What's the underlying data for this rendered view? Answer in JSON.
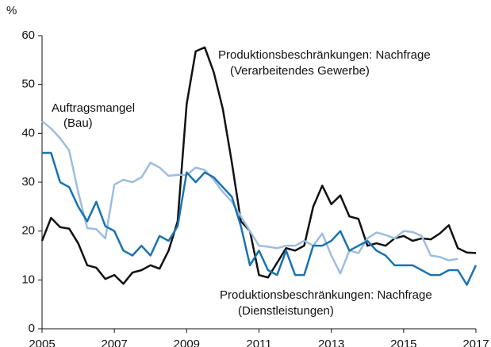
{
  "chart_data": {
    "type": "line",
    "y_label": "%",
    "x": [
      2005,
      2005.25,
      2005.5,
      2005.75,
      2006,
      2006.25,
      2006.5,
      2006.75,
      2007,
      2007.25,
      2007.5,
      2007.75,
      2008,
      2008.25,
      2008.5,
      2008.75,
      2009,
      2009.25,
      2009.5,
      2009.75,
      2010,
      2010.25,
      2010.5,
      2010.75,
      2011,
      2011.25,
      2011.5,
      2011.75,
      2012,
      2012.25,
      2012.5,
      2012.75,
      2013,
      2013.25,
      2013.5,
      2013.75,
      2014,
      2014.25,
      2014.5,
      2014.75,
      2015,
      2015.25,
      2015.5,
      2015.75,
      2016,
      2016.25,
      2016.5,
      2016.75,
      2017
    ],
    "series": [
      {
        "label": [
          "Produktionsbeschränkungen: Nachfrage",
          "(Verarbeitendes Gewerbe)"
        ],
        "color": "#111111",
        "values": [
          18,
          22.7,
          20.8,
          20.5,
          17.5,
          13,
          12.5,
          10.2,
          11,
          9.2,
          11.5,
          12,
          13,
          12.3,
          16,
          22,
          46,
          56.8,
          57.6,
          52.5,
          45,
          34,
          22,
          20,
          11,
          10.5,
          13.5,
          16.5,
          16,
          17,
          25,
          29.3,
          25.5,
          27.3,
          23,
          22.5,
          17,
          17.5,
          17,
          18.5,
          19,
          18,
          18.5,
          18.3,
          19.5,
          21.2,
          16.5,
          15.6,
          15.5
        ]
      },
      {
        "label": [
          "Auftragsmangel",
          "(Bau)"
        ],
        "color": "#9dbde0",
        "values": [
          42.5,
          41,
          39,
          36.5,
          28,
          20.6,
          20.4,
          18.5,
          29.5,
          30.5,
          30,
          31,
          34,
          33,
          31.3,
          31.5,
          31.5,
          33,
          32.5,
          30.5,
          28,
          26,
          23,
          20,
          17,
          16.8,
          16.5,
          17,
          17,
          18,
          17,
          19.5,
          15,
          11.3,
          16,
          15.5,
          18.5,
          19.7,
          19.2,
          18.5,
          20,
          19.8,
          19,
          15,
          14.7,
          14,
          14.3,
          null,
          null
        ]
      },
      {
        "label": [
          "Produktionsbeschränkungen: Nachfrage",
          "(Dienstleistungen)"
        ],
        "color": "#1a73b0",
        "values": [
          36,
          36,
          30,
          29,
          25,
          22,
          26,
          21,
          20,
          16,
          15,
          17,
          15,
          19,
          18,
          21,
          32,
          30,
          32,
          31,
          29,
          27,
          21,
          13,
          16,
          12,
          11,
          16,
          11,
          11,
          17,
          17,
          18,
          20,
          16,
          17,
          18,
          16,
          15,
          13,
          13,
          13,
          12,
          11,
          11,
          12,
          12,
          9,
          13
        ]
      }
    ],
    "xlim": [
      2005,
      2017
    ],
    "xticks": [
      2005,
      2007,
      2009,
      2011,
      2013,
      2015,
      2017
    ],
    "ylim": [
      0,
      60
    ],
    "yticks": [
      0,
      10,
      20,
      30,
      40,
      50,
      60
    ]
  }
}
